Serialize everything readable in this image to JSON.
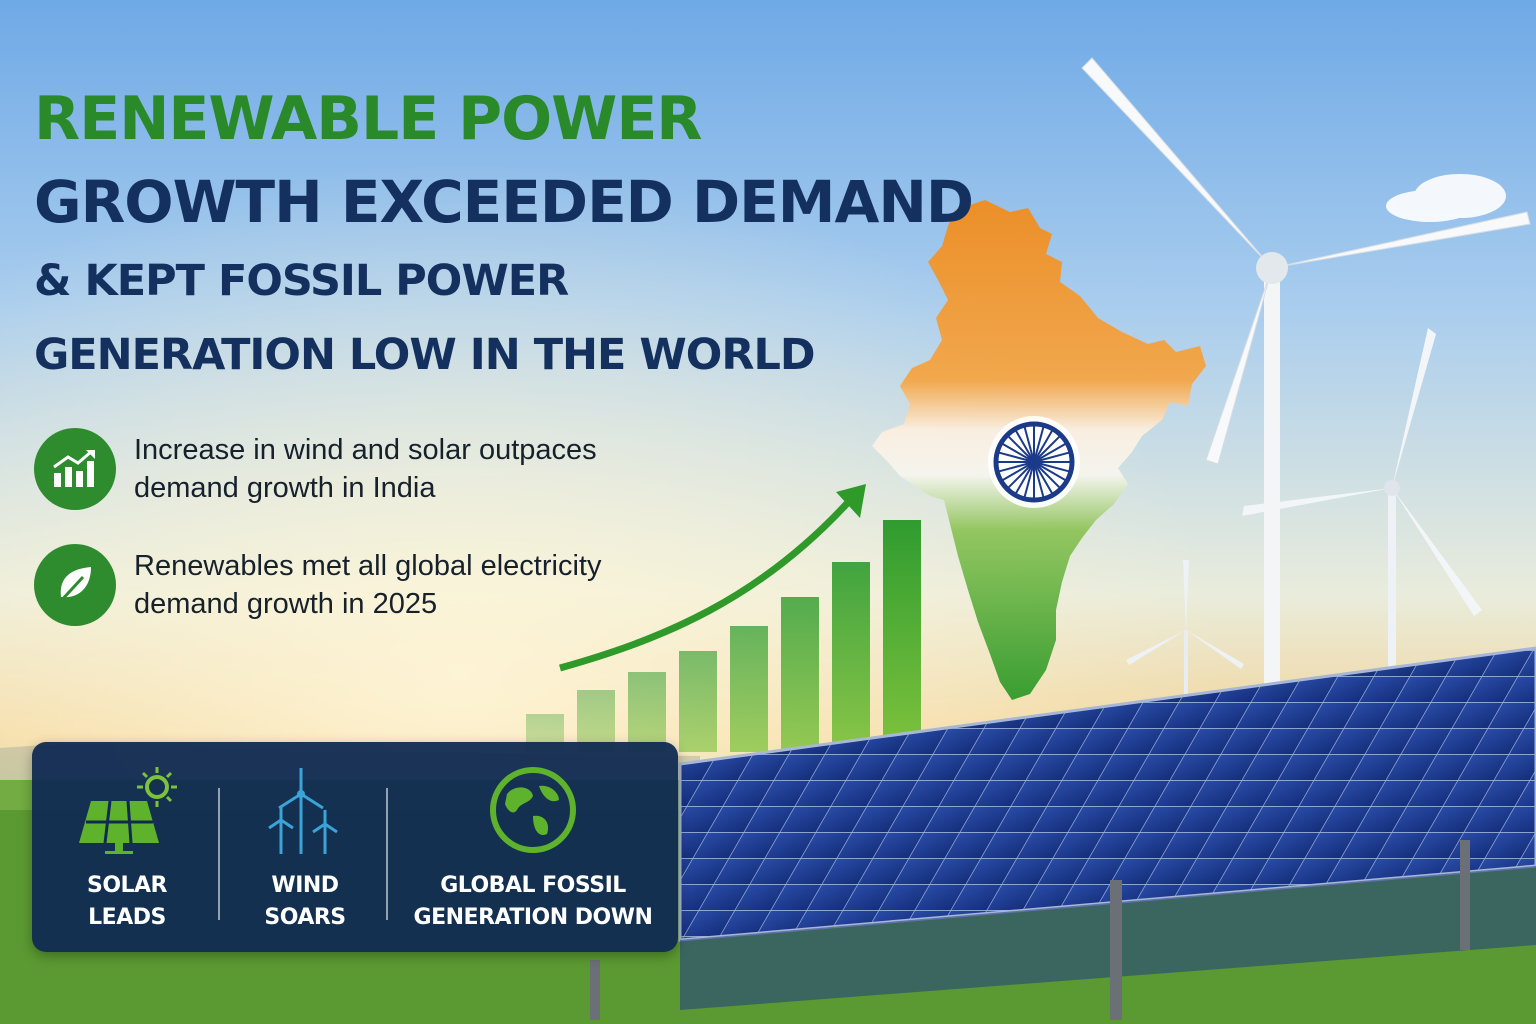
{
  "headline": {
    "line1": "RENEWABLE POWER",
    "line2": "GROWTH EXCEEDED DEMAND",
    "line3": "& KEPT FOSSIL POWER",
    "line4": "GENERATION LOW IN THE WORLD"
  },
  "bullets": [
    {
      "icon": "growth-chart-icon",
      "text": "Increase in wind and solar outpaces demand growth in India"
    },
    {
      "icon": "leaf-icon",
      "text": "Renewables met all global electricity demand growth in 2025"
    }
  ],
  "panel": {
    "items": [
      {
        "icon": "solar-panel-icon",
        "line1": "SOLAR",
        "line2": "LEADS"
      },
      {
        "icon": "wind-turbine-icon",
        "line1": "WIND",
        "line2": "SOARS"
      },
      {
        "icon": "globe-icon",
        "line1": "GLOBAL FOSSIL",
        "line2": "GENERATION DOWN"
      }
    ]
  },
  "colors": {
    "headline_green": "#2a8a2a",
    "headline_navy": "#14305e",
    "panel_bg": "#102a52",
    "icon_green": "#2e8b2e",
    "saffron": "#f08c1e",
    "india_green": "#2f9a2a",
    "chakra_blue": "#1b3a8a"
  }
}
